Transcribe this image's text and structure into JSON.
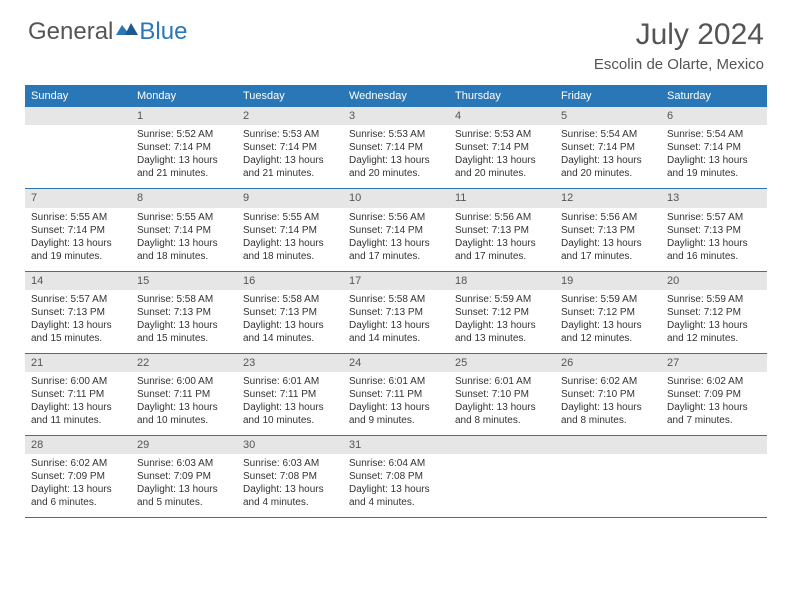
{
  "logo": {
    "general": "General",
    "blue": "Blue"
  },
  "title": "July 2024",
  "location": "Escolin de Olarte, Mexico",
  "colors": {
    "header_bg": "#2a77b8",
    "header_text": "#ffffff",
    "daynum_bg": "#e6e6e6",
    "daynum_text": "#555555",
    "body_text": "#333333",
    "title_text": "#555555",
    "row_border": "#2a77b8"
  },
  "day_headers": [
    "Sunday",
    "Monday",
    "Tuesday",
    "Wednesday",
    "Thursday",
    "Friday",
    "Saturday"
  ],
  "weeks": [
    [
      {
        "num": "",
        "sunrise": "",
        "sunset": "",
        "daylight1": "",
        "daylight2": ""
      },
      {
        "num": "1",
        "sunrise": "Sunrise: 5:52 AM",
        "sunset": "Sunset: 7:14 PM",
        "daylight1": "Daylight: 13 hours",
        "daylight2": "and 21 minutes."
      },
      {
        "num": "2",
        "sunrise": "Sunrise: 5:53 AM",
        "sunset": "Sunset: 7:14 PM",
        "daylight1": "Daylight: 13 hours",
        "daylight2": "and 21 minutes."
      },
      {
        "num": "3",
        "sunrise": "Sunrise: 5:53 AM",
        "sunset": "Sunset: 7:14 PM",
        "daylight1": "Daylight: 13 hours",
        "daylight2": "and 20 minutes."
      },
      {
        "num": "4",
        "sunrise": "Sunrise: 5:53 AM",
        "sunset": "Sunset: 7:14 PM",
        "daylight1": "Daylight: 13 hours",
        "daylight2": "and 20 minutes."
      },
      {
        "num": "5",
        "sunrise": "Sunrise: 5:54 AM",
        "sunset": "Sunset: 7:14 PM",
        "daylight1": "Daylight: 13 hours",
        "daylight2": "and 20 minutes."
      },
      {
        "num": "6",
        "sunrise": "Sunrise: 5:54 AM",
        "sunset": "Sunset: 7:14 PM",
        "daylight1": "Daylight: 13 hours",
        "daylight2": "and 19 minutes."
      }
    ],
    [
      {
        "num": "7",
        "sunrise": "Sunrise: 5:55 AM",
        "sunset": "Sunset: 7:14 PM",
        "daylight1": "Daylight: 13 hours",
        "daylight2": "and 19 minutes."
      },
      {
        "num": "8",
        "sunrise": "Sunrise: 5:55 AM",
        "sunset": "Sunset: 7:14 PM",
        "daylight1": "Daylight: 13 hours",
        "daylight2": "and 18 minutes."
      },
      {
        "num": "9",
        "sunrise": "Sunrise: 5:55 AM",
        "sunset": "Sunset: 7:14 PM",
        "daylight1": "Daylight: 13 hours",
        "daylight2": "and 18 minutes."
      },
      {
        "num": "10",
        "sunrise": "Sunrise: 5:56 AM",
        "sunset": "Sunset: 7:14 PM",
        "daylight1": "Daylight: 13 hours",
        "daylight2": "and 17 minutes."
      },
      {
        "num": "11",
        "sunrise": "Sunrise: 5:56 AM",
        "sunset": "Sunset: 7:13 PM",
        "daylight1": "Daylight: 13 hours",
        "daylight2": "and 17 minutes."
      },
      {
        "num": "12",
        "sunrise": "Sunrise: 5:56 AM",
        "sunset": "Sunset: 7:13 PM",
        "daylight1": "Daylight: 13 hours",
        "daylight2": "and 17 minutes."
      },
      {
        "num": "13",
        "sunrise": "Sunrise: 5:57 AM",
        "sunset": "Sunset: 7:13 PM",
        "daylight1": "Daylight: 13 hours",
        "daylight2": "and 16 minutes."
      }
    ],
    [
      {
        "num": "14",
        "sunrise": "Sunrise: 5:57 AM",
        "sunset": "Sunset: 7:13 PM",
        "daylight1": "Daylight: 13 hours",
        "daylight2": "and 15 minutes."
      },
      {
        "num": "15",
        "sunrise": "Sunrise: 5:58 AM",
        "sunset": "Sunset: 7:13 PM",
        "daylight1": "Daylight: 13 hours",
        "daylight2": "and 15 minutes."
      },
      {
        "num": "16",
        "sunrise": "Sunrise: 5:58 AM",
        "sunset": "Sunset: 7:13 PM",
        "daylight1": "Daylight: 13 hours",
        "daylight2": "and 14 minutes."
      },
      {
        "num": "17",
        "sunrise": "Sunrise: 5:58 AM",
        "sunset": "Sunset: 7:13 PM",
        "daylight1": "Daylight: 13 hours",
        "daylight2": "and 14 minutes."
      },
      {
        "num": "18",
        "sunrise": "Sunrise: 5:59 AM",
        "sunset": "Sunset: 7:12 PM",
        "daylight1": "Daylight: 13 hours",
        "daylight2": "and 13 minutes."
      },
      {
        "num": "19",
        "sunrise": "Sunrise: 5:59 AM",
        "sunset": "Sunset: 7:12 PM",
        "daylight1": "Daylight: 13 hours",
        "daylight2": "and 12 minutes."
      },
      {
        "num": "20",
        "sunrise": "Sunrise: 5:59 AM",
        "sunset": "Sunset: 7:12 PM",
        "daylight1": "Daylight: 13 hours",
        "daylight2": "and 12 minutes."
      }
    ],
    [
      {
        "num": "21",
        "sunrise": "Sunrise: 6:00 AM",
        "sunset": "Sunset: 7:11 PM",
        "daylight1": "Daylight: 13 hours",
        "daylight2": "and 11 minutes."
      },
      {
        "num": "22",
        "sunrise": "Sunrise: 6:00 AM",
        "sunset": "Sunset: 7:11 PM",
        "daylight1": "Daylight: 13 hours",
        "daylight2": "and 10 minutes."
      },
      {
        "num": "23",
        "sunrise": "Sunrise: 6:01 AM",
        "sunset": "Sunset: 7:11 PM",
        "daylight1": "Daylight: 13 hours",
        "daylight2": "and 10 minutes."
      },
      {
        "num": "24",
        "sunrise": "Sunrise: 6:01 AM",
        "sunset": "Sunset: 7:11 PM",
        "daylight1": "Daylight: 13 hours",
        "daylight2": "and 9 minutes."
      },
      {
        "num": "25",
        "sunrise": "Sunrise: 6:01 AM",
        "sunset": "Sunset: 7:10 PM",
        "daylight1": "Daylight: 13 hours",
        "daylight2": "and 8 minutes."
      },
      {
        "num": "26",
        "sunrise": "Sunrise: 6:02 AM",
        "sunset": "Sunset: 7:10 PM",
        "daylight1": "Daylight: 13 hours",
        "daylight2": "and 8 minutes."
      },
      {
        "num": "27",
        "sunrise": "Sunrise: 6:02 AM",
        "sunset": "Sunset: 7:09 PM",
        "daylight1": "Daylight: 13 hours",
        "daylight2": "and 7 minutes."
      }
    ],
    [
      {
        "num": "28",
        "sunrise": "Sunrise: 6:02 AM",
        "sunset": "Sunset: 7:09 PM",
        "daylight1": "Daylight: 13 hours",
        "daylight2": "and 6 minutes."
      },
      {
        "num": "29",
        "sunrise": "Sunrise: 6:03 AM",
        "sunset": "Sunset: 7:09 PM",
        "daylight1": "Daylight: 13 hours",
        "daylight2": "and 5 minutes."
      },
      {
        "num": "30",
        "sunrise": "Sunrise: 6:03 AM",
        "sunset": "Sunset: 7:08 PM",
        "daylight1": "Daylight: 13 hours",
        "daylight2": "and 4 minutes."
      },
      {
        "num": "31",
        "sunrise": "Sunrise: 6:04 AM",
        "sunset": "Sunset: 7:08 PM",
        "daylight1": "Daylight: 13 hours",
        "daylight2": "and 4 minutes."
      },
      {
        "num": "",
        "sunrise": "",
        "sunset": "",
        "daylight1": "",
        "daylight2": ""
      },
      {
        "num": "",
        "sunrise": "",
        "sunset": "",
        "daylight1": "",
        "daylight2": ""
      },
      {
        "num": "",
        "sunrise": "",
        "sunset": "",
        "daylight1": "",
        "daylight2": ""
      }
    ]
  ]
}
